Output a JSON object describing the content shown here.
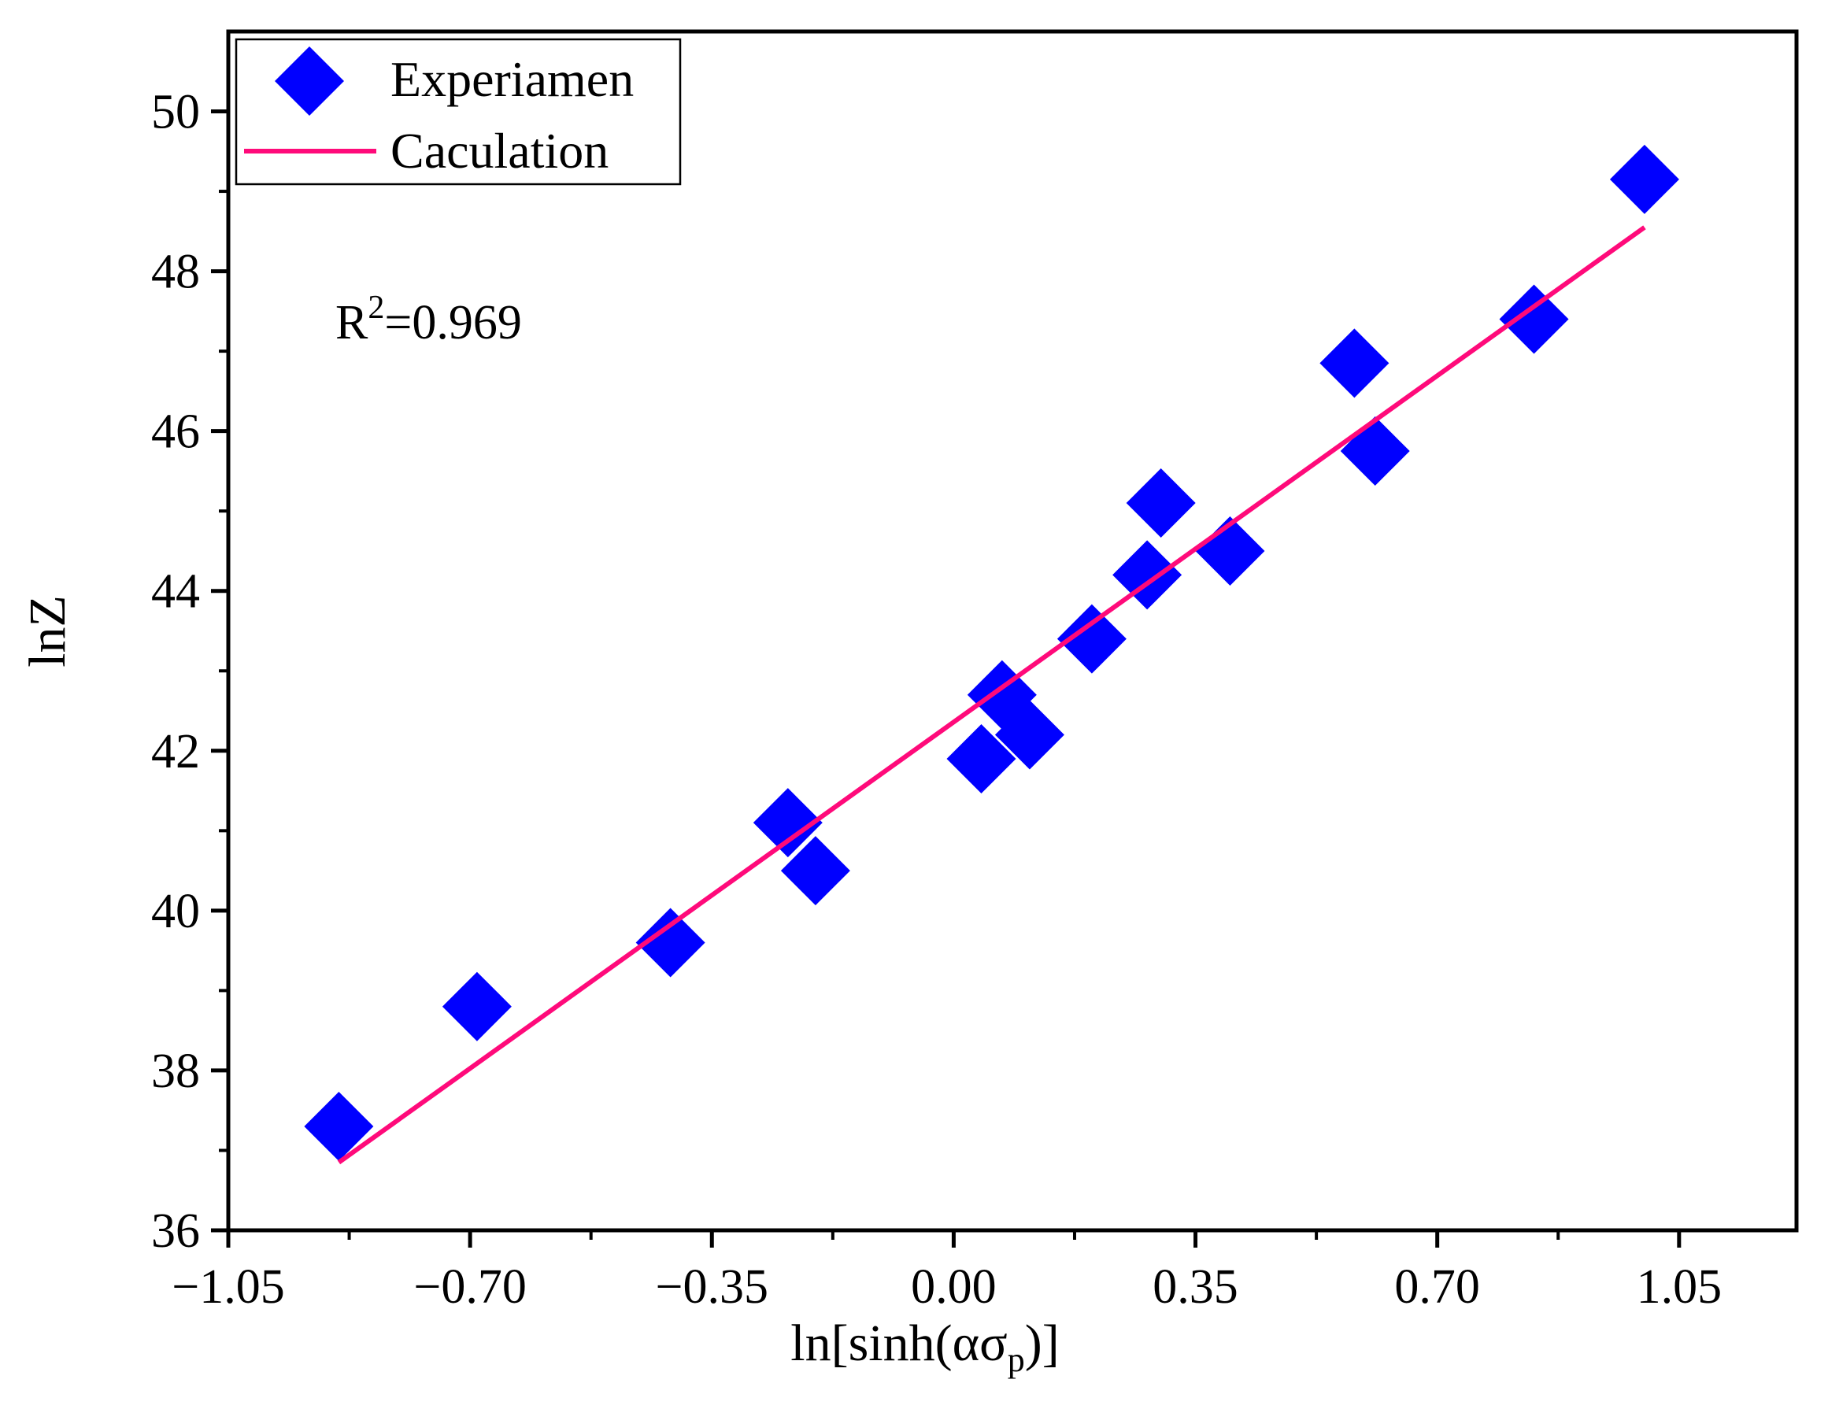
{
  "chart_data": {
    "type": "scatter",
    "title": "",
    "xlabel": "ln[sinh(ασp)]",
    "xlabel_parts": {
      "main": "ln[sinh(ασ",
      "sub": "p",
      "end": ")]"
    },
    "ylabel": "lnZ",
    "xlim": [
      -1.05,
      1.22
    ],
    "ylim": [
      36,
      51
    ],
    "xticks": [
      -1.05,
      -0.7,
      -0.35,
      0.0,
      0.35,
      0.7,
      1.05
    ],
    "xtick_labels": [
      "−1.05",
      "−0.70",
      "−0.35",
      "0.00",
      "0.35",
      "0.70",
      "1.05"
    ],
    "yticks": [
      36,
      38,
      40,
      42,
      44,
      46,
      48,
      50
    ],
    "ytick_labels": [
      "36",
      "38",
      "40",
      "42",
      "44",
      "46",
      "48",
      "50"
    ],
    "grid": false,
    "legend_position": "top-left",
    "series": [
      {
        "name": "Experiamen",
        "kind": "scatter",
        "marker": "diamond",
        "color": "#0000ff",
        "points": [
          [
            -0.89,
            37.3
          ],
          [
            -0.69,
            38.8
          ],
          [
            -0.41,
            39.6
          ],
          [
            -0.24,
            41.1
          ],
          [
            -0.2,
            40.5
          ],
          [
            0.04,
            41.9
          ],
          [
            0.07,
            42.7
          ],
          [
            0.11,
            42.2
          ],
          [
            0.2,
            43.4
          ],
          [
            0.28,
            44.2
          ],
          [
            0.3,
            45.1
          ],
          [
            0.4,
            44.5
          ],
          [
            0.58,
            46.85
          ],
          [
            0.61,
            45.75
          ],
          [
            0.84,
            47.4
          ],
          [
            1.0,
            49.15
          ]
        ]
      },
      {
        "name": "Caculation",
        "kind": "line",
        "color": "#ff0a7a",
        "points": [
          [
            -0.89,
            36.85
          ],
          [
            1.0,
            48.55
          ]
        ]
      }
    ],
    "annotations": [
      {
        "text_main": "R",
        "text_sup": "2",
        "text_rest": "=0.969"
      }
    ]
  }
}
